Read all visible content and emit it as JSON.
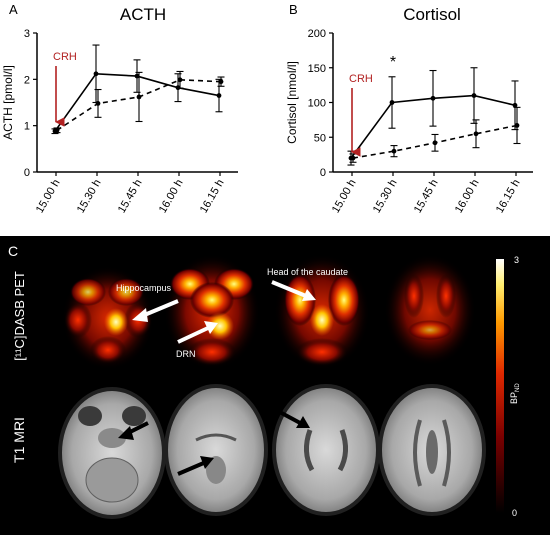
{
  "chart_data": [
    {
      "type": "line",
      "panel_label": "A",
      "title": "ACTH",
      "ylabel": "ACTH [pmol/l]",
      "ylim": [
        0,
        3
      ],
      "yticks": [
        "0",
        "1",
        "2",
        "3"
      ],
      "categories": [
        "15.00 h",
        "15.30 h",
        "15.45 h",
        "16.00 h",
        "16.15 h"
      ],
      "series": [
        {
          "style": "solid",
          "values": [
            0.88,
            2.12,
            2.07,
            1.82,
            1.65
          ],
          "err": [
            0.05,
            0.62,
            0.35,
            0.3,
            0.35
          ]
        },
        {
          "style": "dashed",
          "values": [
            0.9,
            1.48,
            1.62,
            1.99,
            1.95
          ],
          "err": [
            0.05,
            0.3,
            0.53,
            0.18,
            0.1
          ]
        }
      ],
      "annotations": [
        {
          "text": "CRH",
          "color": "#b22222"
        }
      ]
    },
    {
      "type": "line",
      "panel_label": "B",
      "title": "Cortisol",
      "ylabel": "Cortisol [nmol/l]",
      "ylim": [
        0,
        200
      ],
      "yticks": [
        "0",
        "50",
        "100",
        "150",
        "200"
      ],
      "categories": [
        "15.00 h",
        "15.30 h",
        "15.45 h",
        "16.00 h",
        "16.15 h"
      ],
      "series": [
        {
          "style": "solid",
          "values": [
            20,
            100,
            106,
            110,
            96
          ],
          "err": [
            10,
            37,
            40,
            40,
            35
          ]
        },
        {
          "style": "dashed",
          "values": [
            20,
            30,
            42,
            55,
            67
          ],
          "err": [
            6,
            8,
            12,
            20,
            26
          ]
        }
      ],
      "significance": {
        "text": "*",
        "category": "15.30 h"
      },
      "annotations": [
        {
          "text": "CRH",
          "color": "#b22222"
        }
      ]
    }
  ],
  "panel_c": {
    "panel_label": "C",
    "row_labels": {
      "pet": "[¹¹C]DASB PET",
      "mri": "T1 MRI"
    },
    "pet_labels": {
      "hippocampus": "Hippocampus",
      "drn": "DRN",
      "caudate": "Head of the caudate"
    },
    "colorbar": {
      "max": "3",
      "min": "0",
      "label": "BP",
      "label_sub": "ND"
    }
  }
}
